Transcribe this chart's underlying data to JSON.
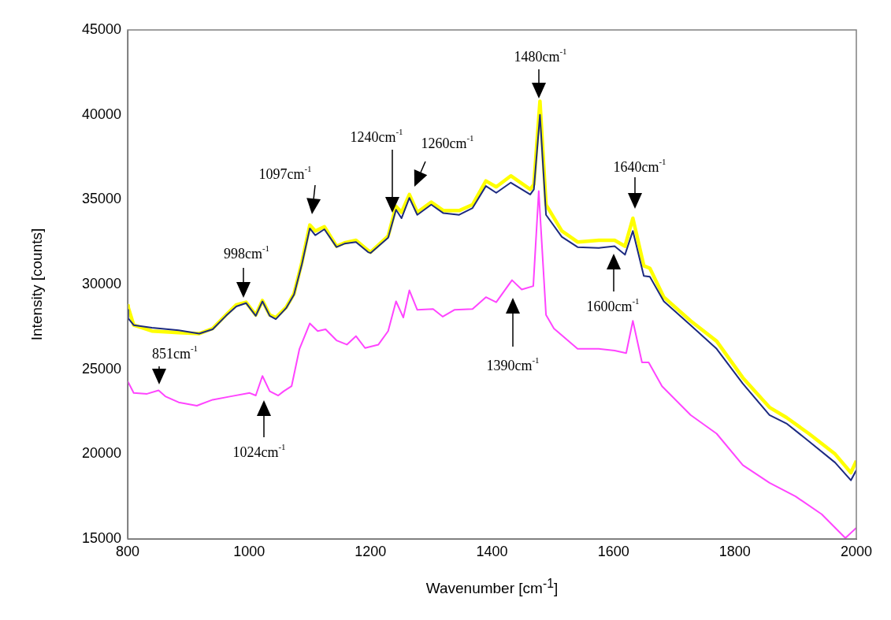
{
  "chart_data": {
    "type": "line",
    "xlabel": "Wavenumber [cm$^{-1}$]",
    "ylabel": "Intensity [counts]",
    "xlim": [
      800,
      2000
    ],
    "xticks": [
      800,
      1000,
      1200,
      1400,
      1600,
      1800,
      2000
    ],
    "ylim": [
      15000,
      45000
    ],
    "yticks": [
      15000,
      20000,
      25000,
      30000,
      35000,
      40000,
      45000
    ],
    "grid": false,
    "legend": false,
    "marker": "none",
    "line_style": "solid",
    "series": [
      {
        "color": "#ffff00",
        "x": [
          800,
          801,
          810,
          840,
          884,
          918,
          940,
          962,
          979,
          995,
          1011,
          1022,
          1034,
          1044,
          1061,
          1074,
          1087,
          1100,
          1109,
          1124,
          1144,
          1157,
          1176,
          1196,
          1200,
          1229,
          1242,
          1251,
          1264,
          1277,
          1300,
          1320,
          1346,
          1368,
          1390,
          1407,
          1431,
          1463,
          1469,
          1479,
          1489,
          1515,
          1541,
          1576,
          1602,
          1619,
          1632,
          1650,
          1660,
          1683,
          1727,
          1770,
          1813,
          1857,
          1885,
          1922,
          1965,
          1991,
          2000
        ],
        "values": [
          28750,
          28650,
          27600,
          27250,
          27150,
          27100,
          27400,
          28200,
          28800,
          28950,
          28200,
          29050,
          28200,
          28050,
          28650,
          29450,
          31300,
          33500,
          33150,
          33400,
          32250,
          32450,
          32600,
          32000,
          31900,
          32850,
          34600,
          34250,
          35300,
          34250,
          34850,
          34350,
          34350,
          34700,
          36100,
          35750,
          36400,
          35600,
          35900,
          40800,
          34700,
          33150,
          32500,
          32600,
          32600,
          32250,
          33900,
          31100,
          30950,
          29250,
          27850,
          26650,
          24500,
          22750,
          22150,
          21200,
          20000,
          18900,
          19600
        ]
      },
      {
        "color": "#1c2a80",
        "x": [
          800,
          801,
          810,
          840,
          884,
          918,
          940,
          962,
          979,
          995,
          1011,
          1022,
          1034,
          1044,
          1061,
          1074,
          1087,
          1100,
          1109,
          1124,
          1144,
          1157,
          1176,
          1196,
          1200,
          1229,
          1242,
          1251,
          1264,
          1277,
          1300,
          1320,
          1346,
          1368,
          1390,
          1407,
          1431,
          1463,
          1469,
          1479,
          1489,
          1515,
          1541,
          1576,
          1602,
          1619,
          1632,
          1650,
          1660,
          1683,
          1727,
          1770,
          1813,
          1857,
          1885,
          1922,
          1965,
          1991,
          2000
        ],
        "values": [
          28500,
          28000,
          27600,
          27450,
          27300,
          27100,
          27350,
          28150,
          28700,
          28900,
          28150,
          29000,
          28150,
          27950,
          28600,
          29400,
          31200,
          33300,
          32900,
          33250,
          32200,
          32400,
          32500,
          31900,
          31850,
          32750,
          34400,
          33900,
          35100,
          34100,
          34700,
          34200,
          34100,
          34500,
          35800,
          35400,
          36000,
          35300,
          35600,
          40000,
          34100,
          32800,
          32200,
          32150,
          32250,
          31750,
          33150,
          30500,
          30450,
          29000,
          27600,
          26200,
          24150,
          22300,
          21800,
          20750,
          19500,
          18450,
          19050
        ]
      },
      {
        "color": "#ff44ff",
        "x": [
          800,
          810,
          832,
          851,
          862,
          884,
          914,
          940,
          970,
          1001,
          1011,
          1022,
          1034,
          1048,
          1057,
          1070,
          1083,
          1100,
          1113,
          1126,
          1144,
          1161,
          1176,
          1191,
          1213,
          1229,
          1242,
          1254,
          1264,
          1277,
          1303,
          1319,
          1338,
          1368,
          1390,
          1407,
          1433,
          1449,
          1468,
          1477,
          1489,
          1502,
          1541,
          1576,
          1602,
          1621,
          1632,
          1647,
          1658,
          1680,
          1727,
          1770,
          1813,
          1857,
          1900,
          1943,
          1982,
          2000
        ],
        "values": [
          24300,
          23600,
          23550,
          23750,
          23400,
          23050,
          22850,
          23200,
          23400,
          23600,
          23450,
          24600,
          23700,
          23450,
          23700,
          24000,
          26200,
          27700,
          27250,
          27350,
          26700,
          26450,
          26950,
          26250,
          26450,
          27250,
          29000,
          28050,
          29650,
          28500,
          28550,
          28100,
          28500,
          28550,
          29250,
          28950,
          30250,
          29700,
          29900,
          35500,
          28200,
          27400,
          26200,
          26200,
          26100,
          25950,
          27850,
          25400,
          25400,
          24000,
          22300,
          21200,
          19350,
          18300,
          17500,
          16450,
          15050,
          15650
        ]
      }
    ],
    "annotations": [
      "851cm$^{-1}$",
      "1024cm$^{-1}$",
      "998cm$^{-1}$",
      "1097cm$^{-1}$",
      "1240cm$^{-1}$",
      "1260cm$^{-1}$",
      "1390cm$^{-1}$",
      "1480cm$^{-1}$",
      "1600cm$^{-1}$",
      "1640cm$^{-1}$"
    ]
  }
}
